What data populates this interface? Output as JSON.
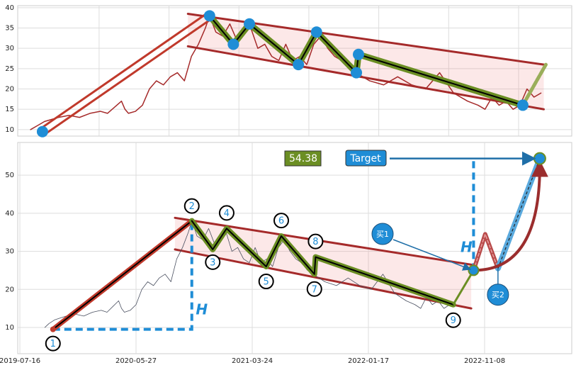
{
  "chart_data": [
    {
      "type": "line",
      "xlim": [
        21.6,
        814
      ],
      "ylim": [
        8.4,
        40.5
      ],
      "yticks": [
        10,
        15,
        20,
        25,
        30,
        35,
        40
      ],
      "xticks": [
        138,
        238,
        338,
        438,
        538,
        638,
        738
      ],
      "grid": true,
      "price": {
        "color": "#a52a2a",
        "x": [
          40,
          50,
          60,
          70,
          80,
          95,
          110,
          125,
          140,
          150,
          160,
          170,
          175,
          180,
          190,
          200,
          210,
          220,
          230,
          240,
          250,
          260,
          270,
          280,
          290,
          296,
          305,
          315,
          325,
          335,
          345,
          355,
          365,
          375,
          385,
          395,
          405,
          415,
          425,
          435,
          445,
          455,
          465,
          475,
          485,
          495,
          505,
          515,
          525,
          545,
          565,
          585,
          605,
          625,
          645,
          665,
          680,
          690,
          700,
          710,
          720,
          730,
          740,
          750,
          760,
          770
        ],
        "values": [
          10,
          11,
          12,
          12.5,
          13,
          13.5,
          13,
          14,
          14.5,
          14,
          15.5,
          17,
          15,
          14,
          14.5,
          16,
          20,
          22,
          21,
          23,
          24,
          22,
          28,
          31,
          35,
          38,
          34,
          33,
          36,
          32,
          34,
          35,
          30,
          31,
          28,
          27,
          31,
          27,
          28,
          26,
          31,
          33,
          30,
          28,
          27,
          25,
          24,
          23,
          22,
          21,
          23,
          21,
          20,
          24,
          19,
          17,
          16,
          15,
          18,
          16,
          17,
          15,
          16,
          20,
          18,
          19
        ]
      },
      "wave": {
        "color": "#6b8e23",
        "x": [
          57,
          296,
          330,
          353,
          423,
          449,
          506,
          509,
          744
        ],
        "values": [
          9.5,
          38,
          31,
          36,
          26,
          34,
          24,
          28.5,
          16
        ]
      },
      "rise_color": "#c0392b",
      "marker_color": "#1f8dd6",
      "channel_color": "#a52a2a",
      "channel_upper": {
        "x": [
          265,
          774
        ],
        "values": [
          38.5,
          26
        ]
      },
      "channel_lower": {
        "x": [
          265,
          774
        ],
        "values": [
          30.5,
          15
        ]
      },
      "extension": {
        "color": "#9aae5a",
        "x": [
          744,
          777
        ],
        "values": [
          16,
          26
        ]
      }
    },
    {
      "type": "line",
      "xlim": [
        -3.7,
        950
      ],
      "ylim": [
        3.1,
        58.6
      ],
      "yticks": [
        10,
        20,
        30,
        40,
        50
      ],
      "xticks": [
        {
          "value": 0,
          "label": "2019-07-16"
        },
        {
          "value": 200,
          "label": "2020-05-27"
        },
        {
          "value": 400,
          "label": "2021-03-24"
        },
        {
          "value": 600,
          "label": "2022-01-17"
        },
        {
          "value": 800,
          "label": "2022-11-08"
        }
      ],
      "grid": true,
      "price": {
        "color": "#4a5060",
        "x": [
          43,
          50,
          60,
          70,
          80,
          95,
          110,
          125,
          140,
          150,
          160,
          170,
          175,
          180,
          190,
          200,
          210,
          220,
          230,
          240,
          250,
          260,
          270,
          280,
          290,
          296,
          305,
          315,
          325,
          335,
          345,
          355,
          365,
          375,
          385,
          395,
          405,
          415,
          425,
          435,
          445,
          455,
          465,
          475,
          485,
          495,
          505,
          515,
          525,
          545,
          565,
          585,
          605,
          625,
          645,
          665,
          680,
          690,
          700,
          710,
          720,
          730,
          740
        ],
        "values": [
          10,
          11,
          12,
          12.5,
          13,
          13.5,
          13,
          14,
          14.5,
          14,
          15.5,
          17,
          15,
          14,
          14.5,
          16,
          20,
          22,
          21,
          23,
          24,
          22,
          28,
          31,
          35,
          38,
          34,
          33,
          36,
          32,
          34,
          35,
          30,
          31,
          28,
          27,
          31,
          27,
          28,
          26,
          31,
          33,
          30,
          28,
          27,
          25,
          24,
          23,
          22,
          21,
          23,
          21,
          20,
          24,
          19,
          17,
          16,
          15,
          18,
          16,
          17,
          15,
          16
        ]
      },
      "wave": {
        "color": "#6b8e23",
        "x": [
          57,
          296,
          332,
          356,
          424,
          450,
          507,
          509,
          746
        ],
        "values": [
          9.5,
          38,
          30.5,
          36,
          26,
          34,
          24,
          28.5,
          16
        ]
      },
      "wave_labels": [
        "1",
        "2",
        "3",
        "4",
        "5",
        "6",
        "7",
        "8",
        "9"
      ],
      "rise_color": "#c0392b",
      "channel_color": "#a52a2a",
      "channel_upper": {
        "x": [
          267,
          777
        ],
        "values": [
          38.8,
          26.5
        ]
      },
      "channel_lower": {
        "x": [
          267,
          777
        ],
        "values": [
          30.5,
          15
        ]
      },
      "pattern": {
        "x": [
          781,
          801,
          823
        ],
        "values": [
          25,
          34.5,
          25.5
        ]
      },
      "target": {
        "x": 895,
        "value": 54.38,
        "value_label": "54.38",
        "label": "Target"
      },
      "buy_labels": [
        "买1",
        "买2"
      ],
      "height_label": "H"
    }
  ]
}
